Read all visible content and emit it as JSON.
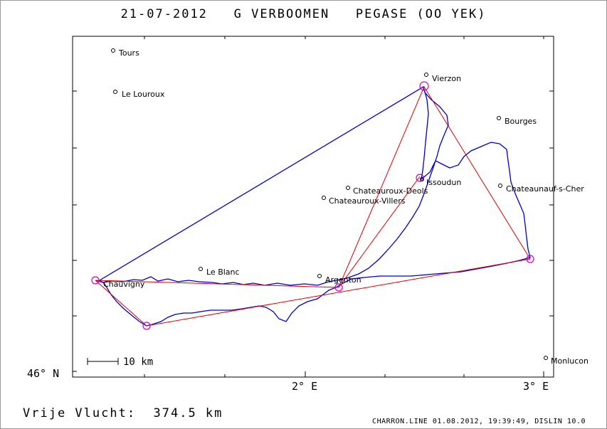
{
  "header": {
    "title": "21-07-2012   G VERBOOMEN   PEGASE (OO YEK)"
  },
  "axes": {
    "y_label": "46° N",
    "x_labels": [
      "2° E",
      "3° E"
    ]
  },
  "cities": [
    {
      "name": "Tours",
      "lon": 1.19,
      "lat": 46.585
    },
    {
      "name": "Le Louroux",
      "lon": 1.2,
      "lat": 46.503
    },
    {
      "name": "Vierzon",
      "lon": 2.51,
      "lat": 46.538
    },
    {
      "name": "Bourges",
      "lon": 2.82,
      "lat": 46.455
    },
    {
      "name": "Chateaunauf-s-Cher",
      "lon": 2.82,
      "lat": 46.308
    },
    {
      "name": "Issoudun",
      "lon": 2.48,
      "lat": 46.322
    },
    {
      "name": "Chateauroux-Deols",
      "lon": 2.18,
      "lat": 46.307
    },
    {
      "name": "Chateauroux-Villers",
      "lon": 2.08,
      "lat": 46.29
    },
    {
      "name": "Le Blanc",
      "lon": 1.56,
      "lat": 46.198
    },
    {
      "name": "Argenton",
      "lon": 2.06,
      "lat": 46.186
    },
    {
      "name": "Chauvigny",
      "lon": 1.11,
      "lat": 46.172
    },
    {
      "name": "Monlucon",
      "lon": 3.02,
      "lat": 46.023
    }
  ],
  "turnpoints": [
    {
      "lon": 1.11,
      "lat": 46.177
    },
    {
      "lon": 1.32,
      "lat": 46.087
    },
    {
      "lon": 2.95,
      "lat": 46.218
    },
    {
      "lon": 2.5,
      "lat": 46.518
    },
    {
      "lon": 2.48,
      "lat": 46.338
    },
    {
      "lon": 2.14,
      "lat": 46.168
    }
  ],
  "scale_bar": {
    "label": "10 km"
  },
  "footer": {
    "distance_text": "Vrije Vlucht:  374.5 km",
    "credit": "CHARRON.LINE 01.08.2012, 19:39:49, DISLIN 10.0"
  },
  "colors": {
    "track": "#0000cc",
    "task": "#e00000",
    "turnpoint": "#cc00cc"
  }
}
